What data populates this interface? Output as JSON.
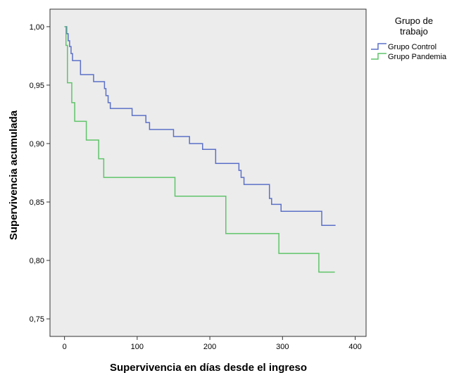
{
  "chart_data": {
    "type": "line",
    "step": true,
    "xlabel": "Supervivencia en días desde el ingreso",
    "ylabel": "Supervivencia acumulada",
    "xlim": [
      -20,
      415
    ],
    "ylim": [
      0.735,
      1.015
    ],
    "xticks": [
      0,
      100,
      200,
      300,
      400
    ],
    "xtick_labels": [
      "0",
      "100",
      "200",
      "300",
      "400"
    ],
    "yticks": [
      0.75,
      0.8,
      0.85,
      0.9,
      0.95,
      1.0
    ],
    "ytick_labels": [
      "0,75",
      "0,80",
      "0,85",
      "0,90",
      "0,95",
      "1,00"
    ],
    "grid": false,
    "plot_background": "#ececec",
    "legend_position": "right",
    "legend_title": "Grupo de trabajo",
    "legend_title_lines": [
      "Grupo de",
      "trabajo"
    ],
    "series": [
      {
        "name": "Grupo Control",
        "color": "#5b70c8",
        "x": [
          0,
          3,
          5,
          7,
          9,
          11,
          13,
          22,
          40,
          55,
          57,
          60,
          63,
          67,
          93,
          112,
          117,
          150,
          172,
          190,
          208,
          240,
          243,
          247,
          282,
          285,
          298,
          354,
          373
        ],
        "y": [
          1.0,
          0.994,
          0.988,
          0.983,
          0.977,
          0.971,
          0.971,
          0.959,
          0.953,
          0.947,
          0.941,
          0.935,
          0.93,
          0.93,
          0.924,
          0.918,
          0.912,
          0.906,
          0.9,
          0.895,
          0.883,
          0.877,
          0.871,
          0.865,
          0.853,
          0.848,
          0.842,
          0.83,
          0.83
        ]
      },
      {
        "name": "Grupo Pandemia",
        "color": "#5fc46a",
        "x": [
          0,
          2,
          4,
          10,
          14,
          30,
          47,
          54,
          152,
          222,
          295,
          350,
          372
        ],
        "y": [
          1.0,
          0.984,
          0.952,
          0.935,
          0.919,
          0.903,
          0.887,
          0.871,
          0.855,
          0.823,
          0.806,
          0.79,
          0.79
        ]
      }
    ]
  }
}
